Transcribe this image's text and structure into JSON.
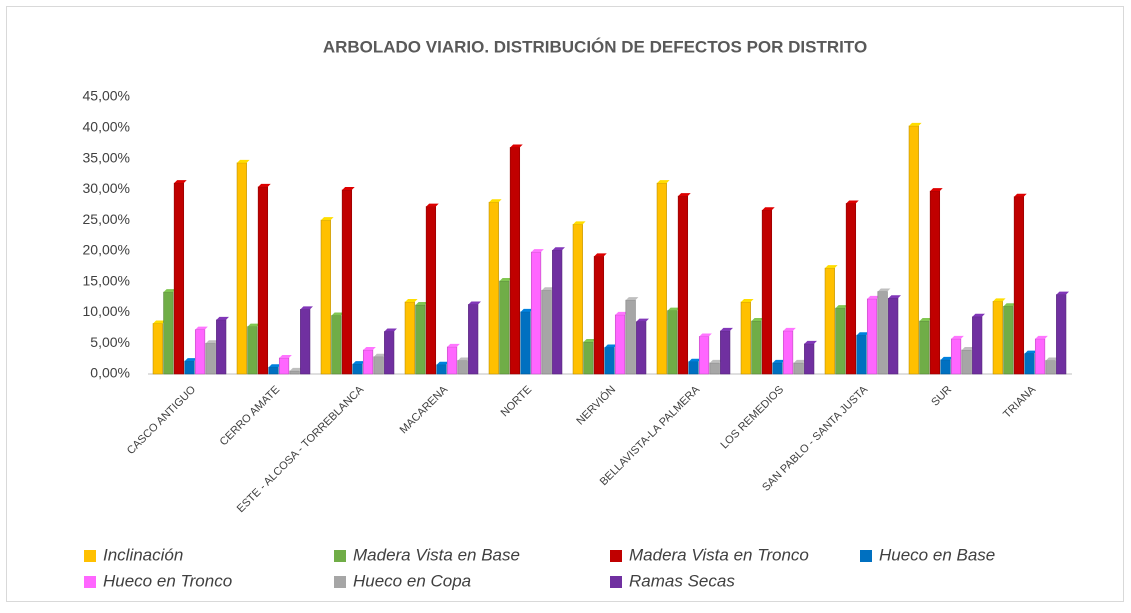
{
  "chart_data": {
    "type": "bar",
    "title": "ARBOLADO VIARIO. DISTRIBUCIÓN DE DEFECTOS POR DISTRITO",
    "categories": [
      "CASCO ANTIGUO",
      "CERRO AMATE",
      "ESTE - ALCOSA - TORREBLANCA",
      "MACARENA",
      "NORTE",
      "NERVIÓN",
      "BELLAVISTA-LA PALMERA",
      "LOS REMEDIOS",
      "SAN PABLO - SANTA JUSTA",
      "SUR",
      "TRIANA"
    ],
    "series": [
      {
        "name": "Inclinación",
        "color": "#ffc000",
        "values": [
          8.2,
          34.3,
          25.0,
          11.7,
          27.9,
          24.3,
          31.0,
          11.7,
          17.2,
          40.3,
          11.8
        ]
      },
      {
        "name": "Madera Vista en Base",
        "color": "#70ad47",
        "values": [
          13.3,
          7.7,
          9.5,
          11.2,
          15.1,
          5.2,
          10.3,
          8.6,
          10.7,
          8.6,
          11.0
        ]
      },
      {
        "name": "Madera Vista en Tronco",
        "color": "#c00000",
        "values": [
          31.0,
          30.4,
          29.9,
          27.2,
          36.8,
          19.1,
          28.9,
          26.6,
          27.7,
          29.7,
          28.8
        ]
      },
      {
        "name": "Hueco en Base",
        "color": "#0070c0",
        "values": [
          2.1,
          1.1,
          1.6,
          1.5,
          10.1,
          4.3,
          2.0,
          1.8,
          6.3,
          2.3,
          3.3
        ]
      },
      {
        "name": "Hueco en Tronco",
        "color": "#ff66ff",
        "values": [
          7.2,
          2.6,
          3.9,
          4.4,
          19.8,
          9.6,
          6.1,
          7.0,
          12.2,
          5.7,
          5.7
        ]
      },
      {
        "name": "Hueco en Copa",
        "color": "#a6a6a6",
        "values": [
          5.0,
          0.5,
          2.8,
          2.2,
          13.6,
          12.0,
          1.8,
          1.8,
          13.4,
          3.9,
          2.2
        ]
      },
      {
        "name": "Ramas Secas",
        "color": "#7030a0",
        "values": [
          8.8,
          10.5,
          6.9,
          11.3,
          20.1,
          8.5,
          7.0,
          4.9,
          12.3,
          9.3,
          12.9
        ]
      }
    ],
    "ylim": [
      0,
      45
    ],
    "yticks": [
      {
        "value": 0,
        "label": "0,00%"
      },
      {
        "value": 5,
        "label": "5,00%"
      },
      {
        "value": 10,
        "label": "10,00%"
      },
      {
        "value": 15,
        "label": "15,00%"
      },
      {
        "value": 20,
        "label": "20,00%"
      },
      {
        "value": 25,
        "label": "25,00%"
      },
      {
        "value": 30,
        "label": "30,00%"
      },
      {
        "value": 35,
        "label": "35,00%"
      },
      {
        "value": 40,
        "label": "40,00%"
      },
      {
        "value": 45,
        "label": "45,00%"
      }
    ],
    "grid": false,
    "legend": "bottom"
  }
}
